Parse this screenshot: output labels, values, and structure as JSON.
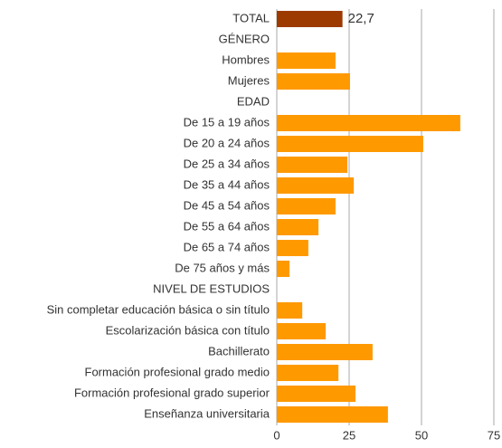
{
  "chart_data": {
    "type": "hbar",
    "categories": [
      "TOTAL",
      "GÉNERO",
      "Hombres",
      "Mujeres",
      "EDAD",
      "De 15 a 19 años",
      "De 20 a 24 años",
      "De 25 a 34 años",
      "De 35 a 44 años",
      "De 45 a 54 años",
      "De 55 a 64 años",
      "De 65 a 74 años",
      "De 75 años y más",
      "NIVEL DE ESTUDIOS",
      "Sin completar educación básica o sin título",
      "Escolarización básica con título",
      "Bachillerato",
      "Formación profesional grado medio",
      "Formación profesional grado superior",
      "Enseñanza universitaria"
    ],
    "values": [
      22.7,
      null,
      20.3,
      25.3,
      null,
      63.4,
      50.6,
      24.4,
      26.6,
      20.3,
      14.4,
      10.9,
      4.4,
      null,
      8.8,
      16.9,
      33.1,
      21.3,
      27.2,
      38.4
    ],
    "value_labels": [
      "22,7",
      null,
      null,
      null,
      null,
      null,
      null,
      null,
      null,
      null,
      null,
      null,
      null,
      null,
      null,
      null,
      null,
      null,
      null,
      null
    ],
    "colors": [
      "#9c3a00",
      null,
      "#ff9900",
      "#ff9900",
      null,
      "#ff9900",
      "#ff9900",
      "#ff9900",
      "#ff9900",
      "#ff9900",
      "#ff9900",
      "#ff9900",
      "#ff9900",
      null,
      "#ff9900",
      "#ff9900",
      "#ff9900",
      "#ff9900",
      "#ff9900",
      "#ff9900"
    ],
    "xlim": [
      0,
      75
    ],
    "xticks": [
      0,
      25,
      50,
      75
    ],
    "grid": true
  }
}
